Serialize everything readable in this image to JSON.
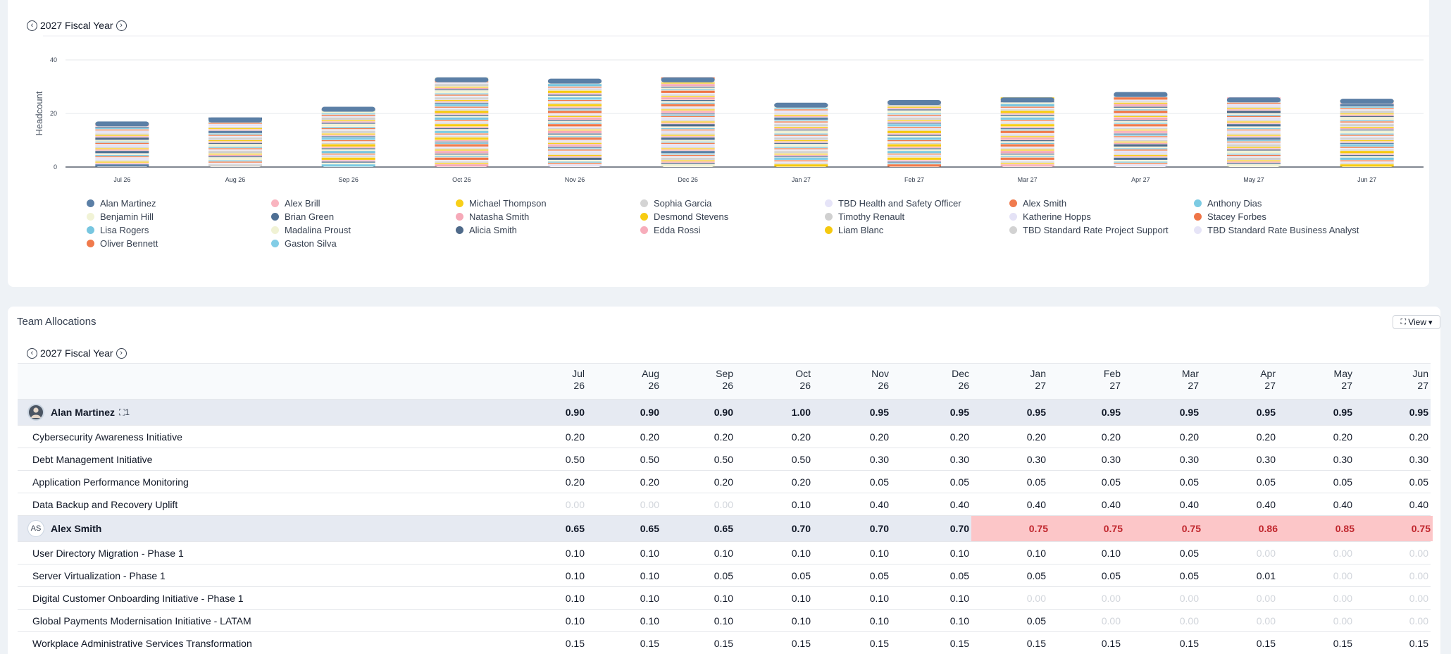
{
  "chart_section": {
    "fiscal_year": "2027 Fiscal Year",
    "prev_icon": "chevron-left-icon",
    "next_icon": "chevron-right-icon"
  },
  "chart_data": {
    "type": "bar",
    "stacked": true,
    "ylabel": "Headcount",
    "ylim": [
      0,
      40
    ],
    "yticks": [
      0,
      20,
      40
    ],
    "grid": true,
    "categories": [
      "Jul 26",
      "Aug 26",
      "Sep 26",
      "Oct 26",
      "Nov 26",
      "Dec 26",
      "Jan 27",
      "Feb 27",
      "Mar 27",
      "Apr 27",
      "May 27",
      "Jun 27"
    ],
    "totals": [
      17,
      18.5,
      22.5,
      33.5,
      33,
      33.5,
      24,
      25,
      26,
      28,
      26,
      25.5
    ],
    "legend_position": "bottom",
    "series": [
      {
        "name": "Alan Martinez",
        "color": "#5b7fa6"
      },
      {
        "name": "Alex Brill",
        "color": "#f9b4bf"
      },
      {
        "name": "Michael Thompson",
        "color": "#f8cf18"
      },
      {
        "name": "Sophia Garcia",
        "color": "#d4d4d4"
      },
      {
        "name": "TBD Health and Safety Officer",
        "color": "#e6e4f8"
      },
      {
        "name": "Alex Smith",
        "color": "#f07b4e"
      },
      {
        "name": "Anthony Dias",
        "color": "#7ccbe3"
      },
      {
        "name": "Benjamin Hill",
        "color": "#f1f3d6"
      },
      {
        "name": "Brian Green",
        "color": "#4e6f94"
      },
      {
        "name": "Natasha Smith",
        "color": "#f6a9b8"
      },
      {
        "name": "Desmond Stevens",
        "color": "#f7cc12"
      },
      {
        "name": "Timothy Renault",
        "color": "#d0d0d0"
      },
      {
        "name": "Katherine Hopps",
        "color": "#e4e2f6"
      },
      {
        "name": "Stacey Forbes",
        "color": "#ef7547"
      },
      {
        "name": "Lisa Rogers",
        "color": "#77c6e0"
      },
      {
        "name": "Madalina Proust",
        "color": "#f0f2d4"
      },
      {
        "name": "Alicia Smith",
        "color": "#4f6a8a"
      },
      {
        "name": "Edda Rossi",
        "color": "#f7adbb"
      },
      {
        "name": "Liam Blanc",
        "color": "#f5c90f"
      },
      {
        "name": "TBD Standard Rate Project Support",
        "color": "#d2d2d2"
      },
      {
        "name": "TBD Standard Rate Business Analyst",
        "color": "#e6e4f7"
      },
      {
        "name": "Oliver Bennett",
        "color": "#f07a4c"
      },
      {
        "name": "Gaston Silva",
        "color": "#82cde6"
      }
    ]
  },
  "allocations": {
    "title": "Team Allocations",
    "view_label": "View",
    "view_icon": "hierarchy-icon",
    "caret_icon": "caret-down-icon",
    "fiscal_year": "2027 Fiscal Year",
    "months": [
      [
        "Jul",
        "26"
      ],
      [
        "Aug",
        "26"
      ],
      [
        "Sep",
        "26"
      ],
      [
        "Oct",
        "26"
      ],
      [
        "Nov",
        "26"
      ],
      [
        "Dec",
        "26"
      ],
      [
        "Jan",
        "27"
      ],
      [
        "Feb",
        "27"
      ],
      [
        "Mar",
        "27"
      ],
      [
        "Apr",
        "27"
      ],
      [
        "May",
        "27"
      ],
      [
        "Jun",
        "27"
      ]
    ],
    "rows": [
      {
        "kind": "person",
        "name": "Alan Martinez",
        "avatar": "photo",
        "team_count": "1",
        "team_icon": "hierarchy-icon",
        "values": [
          "0.90",
          "0.90",
          "0.90",
          "1.00",
          "0.95",
          "0.95",
          "0.95",
          "0.95",
          "0.95",
          "0.95",
          "0.95",
          "0.95"
        ],
        "over_from": -1
      },
      {
        "kind": "project",
        "name": "Cybersecurity Awareness Initiative",
        "values": [
          "0.20",
          "0.20",
          "0.20",
          "0.20",
          "0.20",
          "0.20",
          "0.20",
          "0.20",
          "0.20",
          "0.20",
          "0.20",
          "0.20"
        ]
      },
      {
        "kind": "project",
        "name": "Debt Management Initiative",
        "values": [
          "0.50",
          "0.50",
          "0.50",
          "0.50",
          "0.30",
          "0.30",
          "0.30",
          "0.30",
          "0.30",
          "0.30",
          "0.30",
          "0.30"
        ]
      },
      {
        "kind": "project",
        "name": "Application Performance Monitoring",
        "values": [
          "0.20",
          "0.20",
          "0.20",
          "0.20",
          "0.05",
          "0.05",
          "0.05",
          "0.05",
          "0.05",
          "0.05",
          "0.05",
          "0.05"
        ]
      },
      {
        "kind": "project",
        "name": "Data Backup and Recovery Uplift",
        "values": [
          "0.00",
          "0.00",
          "0.00",
          "0.10",
          "0.40",
          "0.40",
          "0.40",
          "0.40",
          "0.40",
          "0.40",
          "0.40",
          "0.40"
        ]
      },
      {
        "kind": "person",
        "name": "Alex Smith",
        "avatar": "initials",
        "initials": "AS",
        "team_count": "",
        "values": [
          "0.65",
          "0.65",
          "0.65",
          "0.70",
          "0.70",
          "0.70",
          "0.75",
          "0.75",
          "0.75",
          "0.86",
          "0.85",
          "0.75"
        ],
        "over_from": 6
      },
      {
        "kind": "project",
        "name": "User Directory Migration - Phase 1",
        "values": [
          "0.10",
          "0.10",
          "0.10",
          "0.10",
          "0.10",
          "0.10",
          "0.10",
          "0.10",
          "0.05",
          "0.00",
          "0.00",
          "0.00"
        ]
      },
      {
        "kind": "project",
        "name": "Server Virtualization - Phase 1",
        "values": [
          "0.10",
          "0.10",
          "0.05",
          "0.05",
          "0.05",
          "0.05",
          "0.05",
          "0.05",
          "0.05",
          "0.01",
          "0.00",
          "0.00"
        ]
      },
      {
        "kind": "project",
        "name": "Digital Customer Onboarding Initiative - Phase 1",
        "values": [
          "0.10",
          "0.10",
          "0.10",
          "0.10",
          "0.10",
          "0.10",
          "0.00",
          "0.00",
          "0.00",
          "0.00",
          "0.00",
          "0.00"
        ]
      },
      {
        "kind": "project",
        "name": "Global Payments Modernisation Initiative - LATAM",
        "values": [
          "0.10",
          "0.10",
          "0.10",
          "0.10",
          "0.10",
          "0.10",
          "0.05",
          "0.00",
          "0.00",
          "0.00",
          "0.00",
          "0.00"
        ]
      },
      {
        "kind": "project",
        "name": "Workplace Administrative Services Transformation",
        "values": [
          "0.15",
          "0.15",
          "0.15",
          "0.15",
          "0.15",
          "0.15",
          "0.15",
          "0.15",
          "0.15",
          "0.15",
          "0.15",
          "0.15"
        ]
      }
    ]
  }
}
